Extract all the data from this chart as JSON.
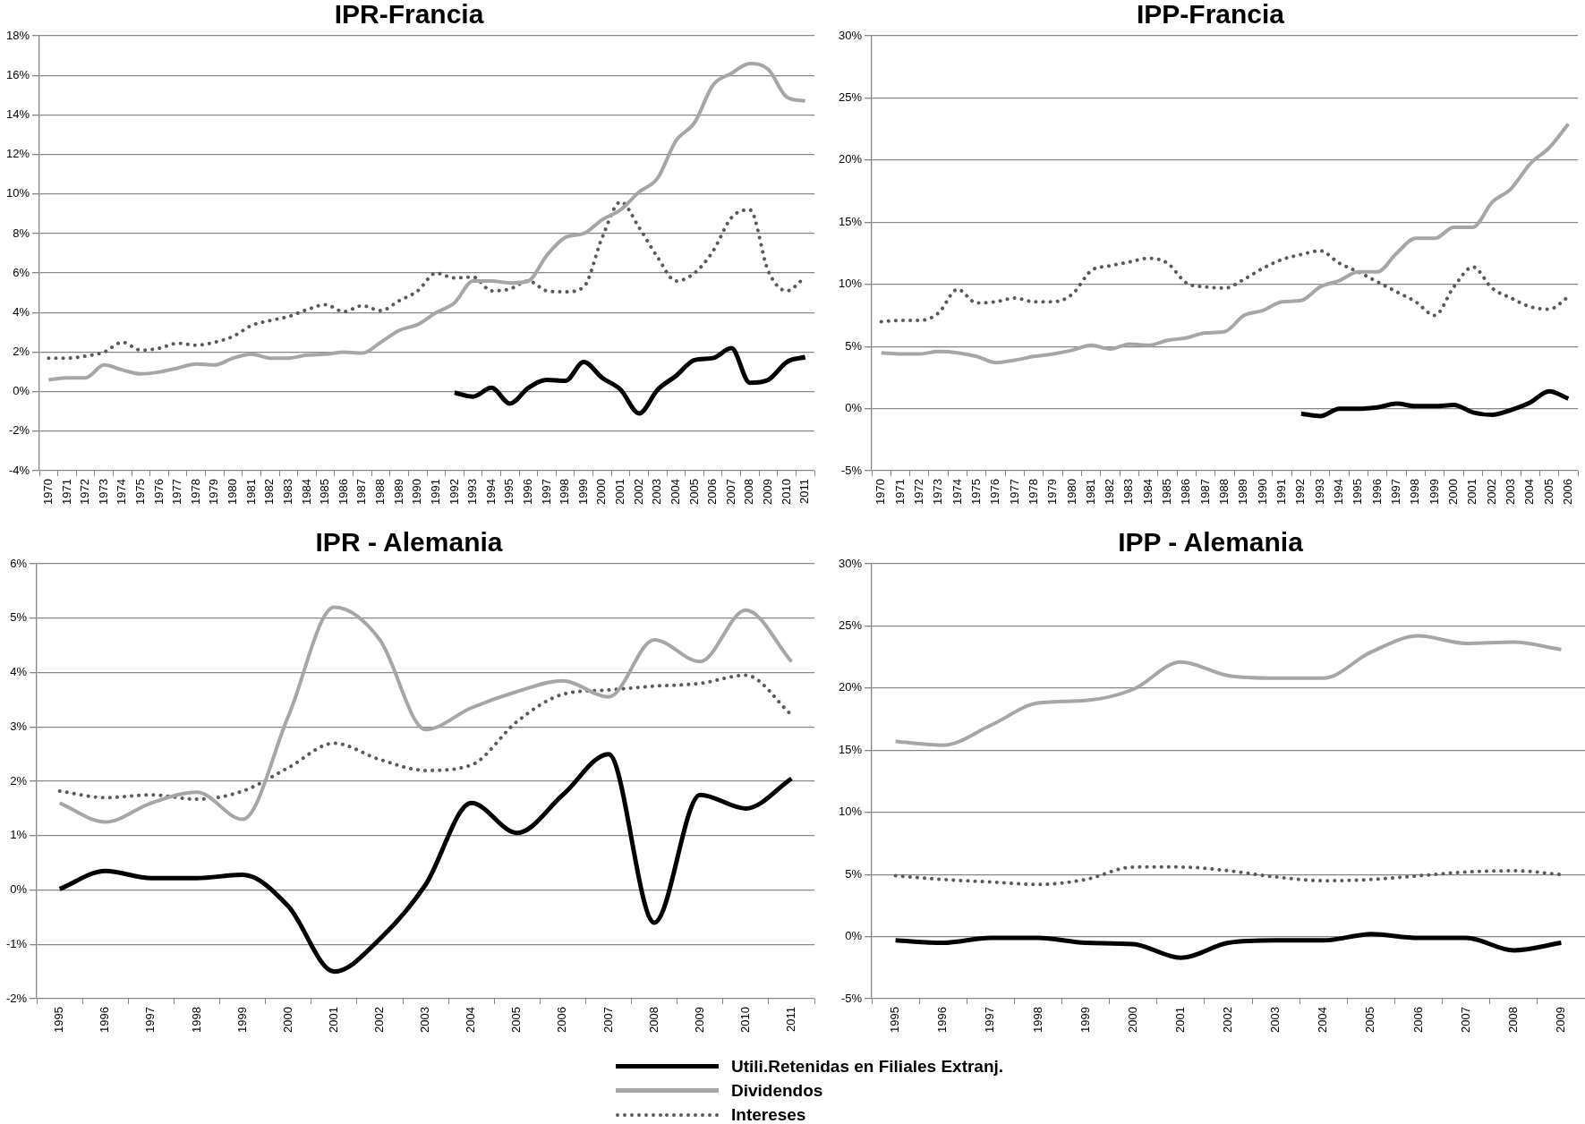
{
  "chart_data": [
    {
      "type": "line",
      "title": "IPR-Francia",
      "categories": [
        "1970",
        "1971",
        "1972",
        "1973",
        "1974",
        "1975",
        "1976",
        "1977",
        "1978",
        "1979",
        "1980",
        "1981",
        "1982",
        "1983",
        "1984",
        "1985",
        "1986",
        "1987",
        "1988",
        "1989",
        "1990",
        "1991",
        "1992",
        "1993",
        "1994",
        "1995",
        "1996",
        "1997",
        "1998",
        "1999",
        "2000",
        "2001",
        "2002",
        "2003",
        "2004",
        "2005",
        "2006",
        "2007",
        "2008",
        "2009",
        "2010",
        "2011"
      ],
      "series": [
        {
          "name": "Utili.Retenidas en Filiales Extranj.",
          "color": "#000000",
          "line_style": "solid",
          "values": [
            null,
            null,
            null,
            null,
            null,
            null,
            null,
            null,
            null,
            null,
            null,
            null,
            null,
            null,
            null,
            null,
            null,
            null,
            null,
            null,
            null,
            null,
            -0.05,
            -0.25,
            0.2,
            -0.6,
            0.2,
            0.6,
            0.55,
            1.5,
            0.7,
            0.1,
            -1.1,
            0.1,
            0.8,
            1.6,
            1.7,
            2.2,
            0.45,
            0.6,
            1.5,
            1.75
          ]
        },
        {
          "name": "Dividendos",
          "color": "#a6a6a6",
          "line_style": "solid",
          "values": [
            0.6,
            0.7,
            0.7,
            1.35,
            1.1,
            0.9,
            1.0,
            1.2,
            1.4,
            1.35,
            1.7,
            1.9,
            1.7,
            1.7,
            1.85,
            1.9,
            2.0,
            1.95,
            2.5,
            3.1,
            3.4,
            4.0,
            4.5,
            5.6,
            5.6,
            5.5,
            5.6,
            6.9,
            7.8,
            8.0,
            8.7,
            9.2,
            10.1,
            10.8,
            12.7,
            13.6,
            15.5,
            16.1,
            16.6,
            16.3,
            14.9,
            14.7
          ]
        },
        {
          "name": "Intereses",
          "color": "#595959",
          "line_style": "dotted",
          "values": [
            1.7,
            1.7,
            1.8,
            2.0,
            2.5,
            2.1,
            2.2,
            2.45,
            2.35,
            2.5,
            2.8,
            3.35,
            3.6,
            3.8,
            4.15,
            4.4,
            4.05,
            4.35,
            4.1,
            4.6,
            5.1,
            6.0,
            5.75,
            5.8,
            5.1,
            5.2,
            5.6,
            5.1,
            5.05,
            5.3,
            7.8,
            9.6,
            8.3,
            6.8,
            5.6,
            6.0,
            7.1,
            8.8,
            9.2,
            6.1,
            5.1,
            5.8
          ]
        }
      ],
      "ylim": [
        -4,
        18
      ],
      "yticks": [
        {
          "value": -4,
          "label": "-4%"
        },
        {
          "value": -2,
          "label": "-2%"
        },
        {
          "value": 0,
          "label": "0%"
        },
        {
          "value": 2,
          "label": "2%"
        },
        {
          "value": 4,
          "label": "4%"
        },
        {
          "value": 6,
          "label": "6%"
        },
        {
          "value": 8,
          "label": "8%"
        },
        {
          "value": 10,
          "label": "10%"
        },
        {
          "value": 12,
          "label": "12%"
        },
        {
          "value": 14,
          "label": "14%"
        },
        {
          "value": 16,
          "label": "16%"
        },
        {
          "value": 18,
          "label": "18%"
        }
      ],
      "grid": "y",
      "marker": "none",
      "legend": "bottom"
    },
    {
      "type": "line",
      "title": "IPP-Francia",
      "categories": [
        "1970",
        "1971",
        "1972",
        "1973",
        "1974",
        "1975",
        "1976",
        "1977",
        "1978",
        "1979",
        "1980",
        "1981",
        "1982",
        "1983",
        "1984",
        "1985",
        "1986",
        "1987",
        "1988",
        "1989",
        "1990",
        "1991",
        "1992",
        "1993",
        "1994",
        "1995",
        "1996",
        "1997",
        "1998",
        "1999",
        "2000",
        "2001",
        "2002",
        "2003",
        "2004",
        "2005",
        "2006"
      ],
      "series": [
        {
          "name": "Utili.Retenidas en Filiales Extranj.",
          "color": "#000000",
          "line_style": "solid",
          "values": [
            null,
            null,
            null,
            null,
            null,
            null,
            null,
            null,
            null,
            null,
            null,
            null,
            null,
            null,
            null,
            null,
            null,
            null,
            null,
            null,
            null,
            null,
            -0.4,
            -0.6,
            0.0,
            0.0,
            0.1,
            0.4,
            0.2,
            0.2,
            0.3,
            -0.3,
            -0.5,
            -0.1,
            0.5,
            1.4,
            0.8
          ]
        },
        {
          "name": "Dividendos",
          "color": "#a6a6a6",
          "line_style": "solid",
          "values": [
            4.5,
            4.4,
            4.4,
            4.6,
            4.5,
            4.2,
            3.7,
            3.9,
            4.2,
            4.4,
            4.7,
            5.1,
            4.8,
            5.2,
            5.1,
            5.5,
            5.7,
            6.1,
            6.2,
            7.5,
            7.9,
            8.6,
            8.7,
            9.8,
            10.3,
            11.0,
            11.0,
            12.5,
            13.7,
            13.7,
            14.6,
            14.6,
            16.6,
            17.7,
            19.7,
            21.0,
            22.9
          ]
        },
        {
          "name": "Intereses",
          "color": "#595959",
          "line_style": "dotted",
          "values": [
            7.0,
            7.1,
            7.1,
            7.7,
            9.6,
            8.5,
            8.6,
            8.9,
            8.6,
            8.6,
            9.2,
            11.1,
            11.5,
            11.8,
            12.1,
            11.7,
            10.1,
            9.8,
            9.7,
            10.4,
            11.3,
            12.0,
            12.4,
            12.7,
            11.7,
            11.0,
            10.2,
            9.4,
            8.6,
            7.5,
            9.8,
            11.4,
            9.7,
            8.9,
            8.2,
            8.0,
            9.0
          ]
        }
      ],
      "ylim": [
        -5,
        30
      ],
      "yticks": [
        {
          "value": -5,
          "label": "-5%"
        },
        {
          "value": 0,
          "label": "0%"
        },
        {
          "value": 5,
          "label": "5%"
        },
        {
          "value": 10,
          "label": "10%"
        },
        {
          "value": 15,
          "label": "15%"
        },
        {
          "value": 20,
          "label": "20%"
        },
        {
          "value": 25,
          "label": "25%"
        },
        {
          "value": 30,
          "label": "30%"
        }
      ],
      "grid": "y",
      "marker": "none"
    },
    {
      "type": "line",
      "title": "IPR - Alemania",
      "categories": [
        "1995",
        "1996",
        "1997",
        "1998",
        "1999",
        "2000",
        "2001",
        "2002",
        "2003",
        "2004",
        "2005",
        "2006",
        "2007",
        "2008",
        "2009",
        "2010",
        "2011"
      ],
      "series": [
        {
          "name": "Utili.Retenidas en Filiales Extranj.",
          "color": "#000000",
          "line_style": "solid",
          "values": [
            0.02,
            0.35,
            0.22,
            0.22,
            0.28,
            -0.3,
            -1.5,
            -0.9,
            0.1,
            1.6,
            1.05,
            1.75,
            2.5,
            -0.6,
            1.75,
            1.5,
            2.05
          ]
        },
        {
          "name": "Dividendos",
          "color": "#a6a6a6",
          "line_style": "solid",
          "values": [
            1.6,
            1.25,
            1.6,
            1.8,
            1.3,
            3.2,
            5.2,
            4.6,
            2.95,
            3.35,
            3.65,
            3.85,
            3.55,
            4.6,
            4.2,
            5.15,
            4.2
          ]
        },
        {
          "name": "Intereses",
          "color": "#595959",
          "line_style": "dotted",
          "values": [
            1.82,
            1.7,
            1.75,
            1.67,
            1.82,
            2.25,
            2.7,
            2.4,
            2.2,
            2.3,
            3.1,
            3.6,
            3.68,
            3.75,
            3.8,
            3.95,
            3.22
          ]
        }
      ],
      "ylim": [
        -2,
        6
      ],
      "yticks": [
        {
          "value": -2,
          "label": "-2%"
        },
        {
          "value": -1,
          "label": "-1%"
        },
        {
          "value": 0,
          "label": "0%"
        },
        {
          "value": 1,
          "label": "1%"
        },
        {
          "value": 2,
          "label": "2%"
        },
        {
          "value": 3,
          "label": "3%"
        },
        {
          "value": 4,
          "label": "4%"
        },
        {
          "value": 5,
          "label": "5%"
        },
        {
          "value": 6,
          "label": "6%"
        }
      ],
      "grid": "y",
      "marker": "none"
    },
    {
      "type": "line",
      "title": "IPP - Alemania",
      "categories": [
        "1995",
        "1996",
        "1997",
        "1998",
        "1999",
        "2000",
        "2001",
        "2002",
        "2003",
        "2004",
        "2005",
        "2006",
        "2007",
        "2008",
        "2009"
      ],
      "series": [
        {
          "name": "Utili.Retenidas en Filiales Extranj.",
          "color": "#000000",
          "line_style": "solid",
          "values": [
            -0.3,
            -0.5,
            -0.1,
            -0.1,
            -0.5,
            -0.6,
            -1.7,
            -0.5,
            -0.3,
            -0.3,
            0.2,
            -0.1,
            -0.1,
            -1.1,
            -0.5
          ]
        },
        {
          "name": "Dividendos",
          "color": "#a6a6a6",
          "line_style": "solid",
          "values": [
            15.7,
            15.4,
            17.0,
            18.8,
            19.0,
            19.9,
            22.1,
            21.0,
            20.8,
            20.8,
            22.9,
            24.2,
            23.6,
            23.7,
            23.1
          ]
        },
        {
          "name": "Intereses",
          "color": "#595959",
          "line_style": "dotted",
          "values": [
            4.9,
            4.6,
            4.4,
            4.2,
            4.6,
            5.6,
            5.6,
            5.3,
            4.8,
            4.5,
            4.6,
            4.9,
            5.2,
            5.3,
            5.0
          ]
        }
      ],
      "ylim": [
        -5,
        30
      ],
      "yticks": [
        {
          "value": -5,
          "label": "-5%"
        },
        {
          "value": 0,
          "label": "0%"
        },
        {
          "value": 5,
          "label": "5%"
        },
        {
          "value": 10,
          "label": "10%"
        },
        {
          "value": 15,
          "label": "15%"
        },
        {
          "value": 20,
          "label": "20%"
        },
        {
          "value": 25,
          "label": "25%"
        },
        {
          "value": 30,
          "label": "30%"
        }
      ],
      "grid": "y",
      "marker": "none"
    }
  ]
}
